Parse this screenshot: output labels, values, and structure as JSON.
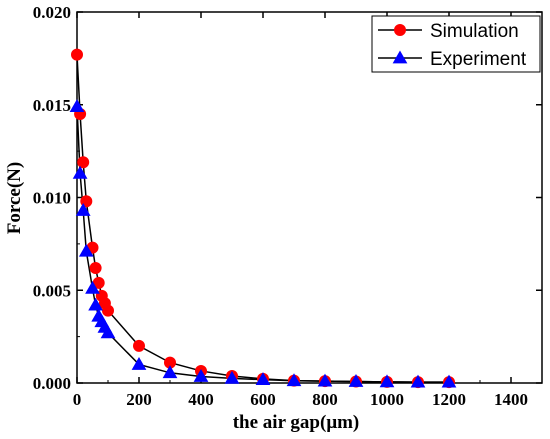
{
  "chart_data": {
    "type": "line",
    "xlabel": "the air gap(μm)",
    "ylabel": "Force(N)",
    "xlim": [
      0,
      1500
    ],
    "ylim": [
      0,
      0.02
    ],
    "x_ticks": [
      0,
      200,
      400,
      600,
      800,
      1000,
      1200,
      1400
    ],
    "y_ticks": [
      0.0,
      0.005,
      0.01,
      0.015,
      0.02
    ],
    "x_tick_labels": [
      "0",
      "200",
      "400",
      "600",
      "800",
      "1000",
      "1200",
      "1400"
    ],
    "y_tick_labels": [
      "0.000",
      "0.005",
      "0.010",
      "0.015",
      "0.020"
    ],
    "grid": false,
    "legend_position": "top-right",
    "series": [
      {
        "name": "Simulation",
        "marker": "circle",
        "color": "#ff0000",
        "line_color": "#000000",
        "x": [
          0,
          10,
          20,
          30,
          50,
          60,
          70,
          80,
          90,
          100,
          200,
          300,
          400,
          500,
          600,
          700,
          800,
          900,
          1000,
          1100,
          1200
        ],
        "y": [
          0.0177,
          0.0145,
          0.0119,
          0.0098,
          0.0073,
          0.0062,
          0.0054,
          0.0047,
          0.0043,
          0.0039,
          0.002,
          0.0011,
          0.00065,
          0.00038,
          0.00022,
          0.00013,
          0.0001,
          8e-05,
          6e-05,
          5e-05,
          5e-05
        ]
      },
      {
        "name": "Experiment",
        "marker": "triangle",
        "color": "#0000ff",
        "line_color": "#000000",
        "x": [
          0,
          10,
          20,
          30,
          50,
          60,
          70,
          80,
          90,
          100,
          200,
          300,
          400,
          500,
          600,
          700,
          800,
          900,
          1000,
          1100,
          1200
        ],
        "y": [
          0.0149,
          0.0113,
          0.0093,
          0.0071,
          0.0051,
          0.0042,
          0.0036,
          0.0033,
          0.003,
          0.0027,
          0.001,
          0.00055,
          0.00035,
          0.00025,
          0.00018,
          0.00012,
          0.0001,
          8e-05,
          6e-05,
          5e-05,
          5e-05
        ]
      }
    ]
  }
}
